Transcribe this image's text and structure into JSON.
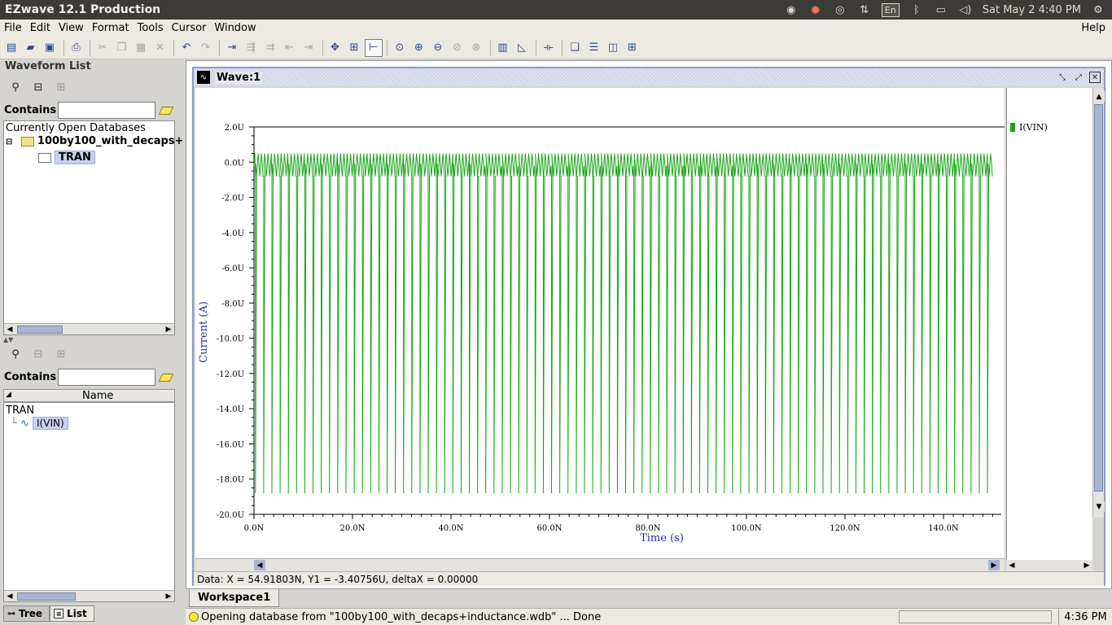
{
  "os_bar": {
    "app_title": "EZwave 12.1 Production",
    "lang": "En",
    "clock": "Sat May  2  4:40 PM"
  },
  "menu": [
    "File",
    "Edit",
    "View",
    "Format",
    "Tools",
    "Cursor",
    "Window"
  ],
  "menu_help": "Help",
  "left_panel": {
    "title": "Waveform List",
    "contains_label": "Contains",
    "contains_value": "",
    "db_header": "Currently Open Databases",
    "db_name": "100by100_with_decaps+",
    "db_child": "TRAN",
    "contains_label2": "Contains",
    "contains_value2": "",
    "name_column": "Name",
    "list_parent": "TRAN",
    "list_signal": "I(VIN)",
    "tab_tree": "Tree",
    "tab_list": "List"
  },
  "wave_window": {
    "title": "Wave:1",
    "legend_label": "I(VIN)",
    "data_readout": "Data: X = 54.91803N,  Y1 = -3.40756U,  deltaX = 0.00000"
  },
  "workspace_tab": "Workspace1",
  "status": {
    "message": "Opening database from \"100by100_with_decaps+inductance.wdb\" ... Done",
    "time": "4:36 PM"
  },
  "chart_data": {
    "type": "line",
    "xlabel": "Time (s)",
    "ylabel": "Current (A)",
    "xlim": [
      0,
      150
    ],
    "ylim": [
      -20,
      2
    ],
    "x_unit": "N",
    "y_unit": "U",
    "x_ticks": [
      "0.0N",
      "20.0N",
      "40.0N",
      "60.0N",
      "80.0N",
      "100.0N",
      "120.0N",
      "140.0N"
    ],
    "x_tick_values": [
      0,
      20,
      40,
      60,
      80,
      100,
      120,
      140
    ],
    "y_ticks": [
      "2.0U",
      "0.0U",
      "-2.0U",
      "-4.0U",
      "-6.0U",
      "-8.0U",
      "-10.0U",
      "-12.0U",
      "-14.0U",
      "-16.0U",
      "-18.0U",
      "-20.0U"
    ],
    "y_tick_values": [
      2,
      0,
      -2,
      -4,
      -6,
      -8,
      -10,
      -12,
      -14,
      -16,
      -18,
      -20
    ],
    "series": [
      {
        "name": "I(VIN)",
        "color": "#1aa61a",
        "ripple_max": 0.5,
        "ripple_min": -0.8,
        "ripple_period": 0.67,
        "spike_period": 1.67,
        "spike_min": -18.8,
        "spike_first": 0.3,
        "x_end": 150
      }
    ]
  }
}
